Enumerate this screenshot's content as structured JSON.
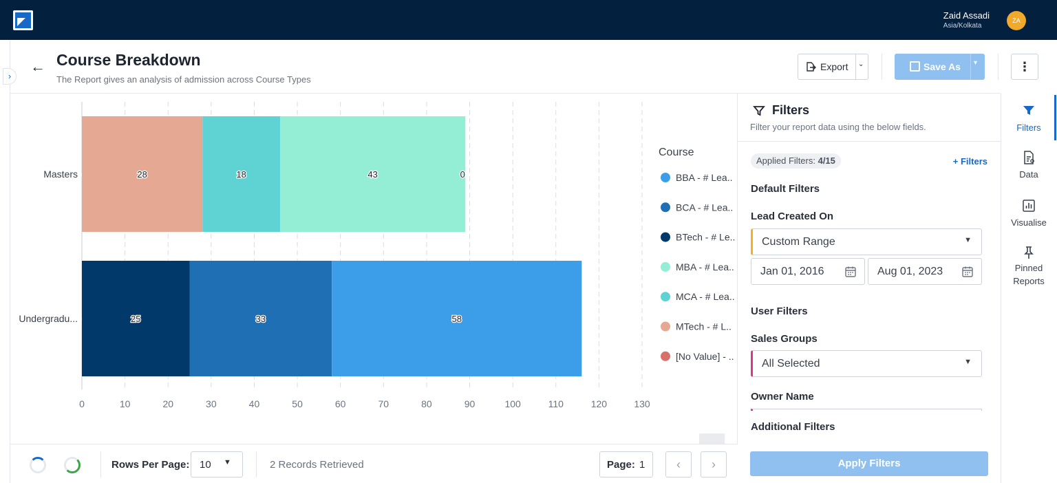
{
  "topbar": {
    "user_name": "Zaid Assadi",
    "timezone": "Asia/Kolkata",
    "avatar_initials": "ZA"
  },
  "header": {
    "title": "Course Breakdown",
    "subtitle": "The Report gives an analysis of admission across Course Types",
    "export_label": "Export",
    "save_as_label": "Save As"
  },
  "chart_data": {
    "type": "bar",
    "orientation": "horizontal",
    "stacked": true,
    "categories": [
      "Masters",
      "Undergradu..."
    ],
    "legend_title": "Course",
    "legend_position": "right",
    "xlim": [
      0,
      130
    ],
    "xticks": [
      "0",
      "10",
      "20",
      "30",
      "40",
      "50",
      "60",
      "70",
      "80",
      "90",
      "100",
      "110",
      "120",
      "130"
    ],
    "grid": true,
    "series": [
      {
        "name": "BBA - # Lea..",
        "color": "#3c9ee8",
        "values": [
          0,
          58
        ]
      },
      {
        "name": "BCA - # Lea..",
        "color": "#1f6fb5",
        "values": [
          0,
          33
        ]
      },
      {
        "name": "BTech - # Le..",
        "color": "#02396b",
        "values": [
          0,
          25
        ]
      },
      {
        "name": "MBA - # Lea..",
        "color": "#93eed5",
        "values": [
          43,
          0
        ]
      },
      {
        "name": "MCA - # Lea..",
        "color": "#5fd3d3",
        "values": [
          18,
          0
        ]
      },
      {
        "name": "MTech - # L..",
        "color": "#e4a893",
        "values": [
          28,
          0
        ]
      },
      {
        "name": "[No Value] - ..",
        "color": "#d8716a",
        "values": [
          0,
          0
        ]
      }
    ],
    "stack_order": {
      "Masters": [
        "[No Value] - ..",
        "MTech - # L..",
        "MCA - # Lea..",
        "MBA - # Lea..",
        "BBA - # Lea.."
      ],
      "Undergradu...": [
        "[No Value] - ..",
        "BTech - # Le..",
        "BCA - # Lea..",
        "BBA - # Lea.."
      ]
    }
  },
  "footer": {
    "rows_per_page_label": "Rows Per Page:",
    "rows_per_page_value": "10",
    "records_text": "2 Records Retrieved",
    "page_label": "Page:",
    "page_value": "1"
  },
  "filters": {
    "title": "Filters",
    "subtitle": "Filter your report data using the below fields.",
    "applied_prefix": "Applied Filters: ",
    "applied_count": "4/15",
    "add_label": "+ Filters",
    "default_section": "Default Filters",
    "lead_created_label": "Lead Created On",
    "lead_created_value": "Custom Range",
    "date_from": "Jan 01, 2016",
    "date_to": "Aug 01, 2023",
    "user_section": "User Filters",
    "sales_groups_label": "Sales Groups",
    "sales_groups_value": "All Selected",
    "owner_label": "Owner Name",
    "additional_section": "Additional Filters",
    "apply_label": "Apply Filters"
  },
  "rail": {
    "items": [
      "Filters",
      "Data",
      "Visualise",
      "Pinned",
      "Reports"
    ]
  },
  "colors": {
    "accent": "#1668c9",
    "topbar": "#03203f",
    "button_disabled": "#8fc0ef"
  }
}
